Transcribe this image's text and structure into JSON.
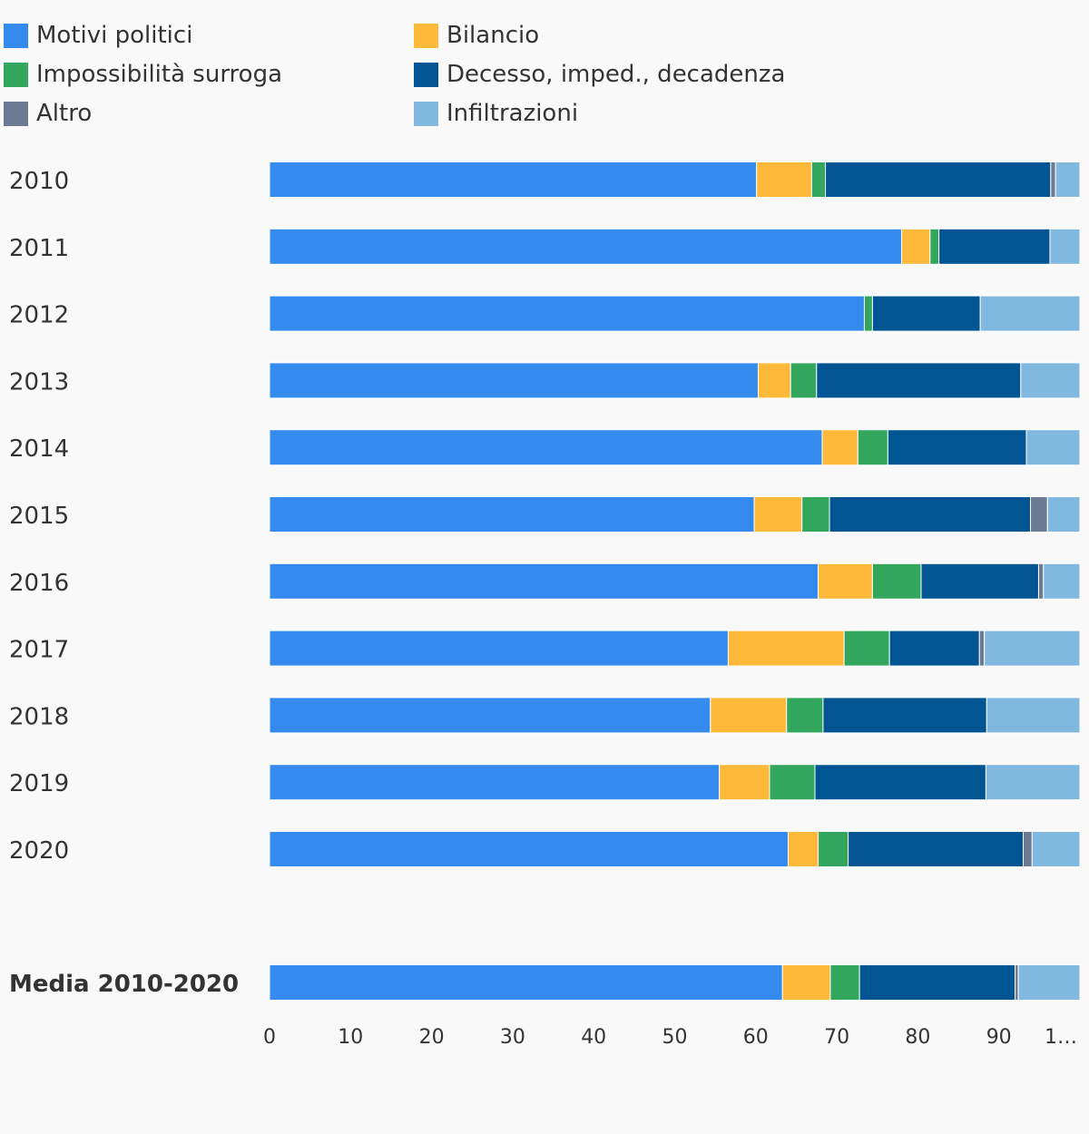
{
  "chart_data": {
    "type": "bar",
    "orientation": "horizontal",
    "stacked": true,
    "categories": [
      "2010",
      "2011",
      "2012",
      "2013",
      "2014",
      "2015",
      "2016",
      "2017",
      "2018",
      "2019",
      "2020",
      "Media 2010-2020"
    ],
    "series": [
      {
        "name": "Motivi politici",
        "color": "#348bed",
        "values": [
          60.1,
          78.0,
          73.4,
          60.3,
          68.2,
          59.8,
          67.7,
          56.6,
          54.4,
          55.5,
          64.0,
          63.3
        ]
      },
      {
        "name": "Bilancio",
        "color": "#ffb93a",
        "values": [
          6.8,
          3.5,
          0,
          4.0,
          4.4,
          5.9,
          6.7,
          14.3,
          9.4,
          6.2,
          3.7,
          5.9
        ]
      },
      {
        "name": "Impossibilità surroga",
        "color": "#33a65d",
        "values": [
          1.7,
          1.1,
          1.0,
          3.2,
          3.7,
          3.4,
          6.0,
          5.6,
          4.5,
          5.6,
          3.7,
          3.6
        ]
      },
      {
        "name": "Decesso, imped., decadenza",
        "color": "#015592",
        "values": [
          27.8,
          13.7,
          13.3,
          25.2,
          17.1,
          24.8,
          14.5,
          11.1,
          20.2,
          21.1,
          21.6,
          19.2
        ]
      },
      {
        "name": "Altro",
        "color": "#6b7b93",
        "values": [
          0.6,
          0,
          0,
          0,
          0,
          2.1,
          0.6,
          0.6,
          0,
          0,
          1.1,
          0.4
        ]
      },
      {
        "name": "Infiltrazioni",
        "color": "#80b8df",
        "values": [
          3.0,
          3.7,
          12.3,
          7.3,
          6.6,
          4.0,
          4.5,
          11.8,
          11.5,
          11.6,
          5.9,
          7.6
        ]
      }
    ],
    "xlim": [
      0,
      100
    ],
    "xticks": [
      "0",
      "10",
      "20",
      "30",
      "40",
      "50",
      "60",
      "70",
      "80",
      "90",
      "1…"
    ],
    "legend_position": "top",
    "grid": false
  }
}
